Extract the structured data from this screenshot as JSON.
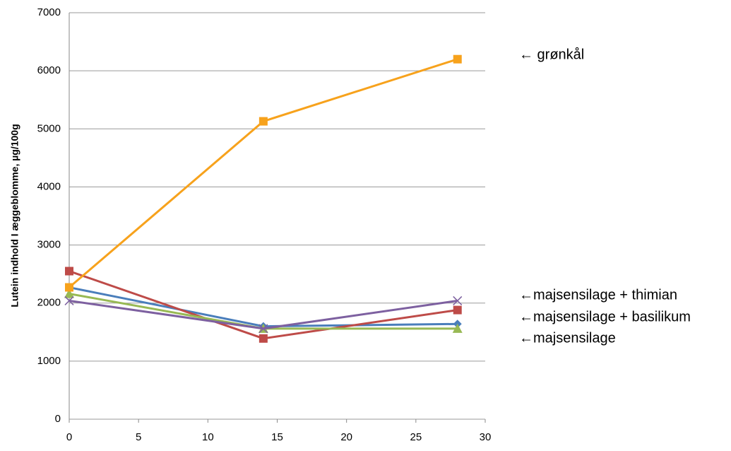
{
  "chart_data": {
    "type": "line",
    "y_label": "Lutein indhold I æggeblomme, µg/100g",
    "x": [
      0,
      14,
      28
    ],
    "series": [
      {
        "color": "#4a7ebb",
        "marker": "diamond",
        "values": [
          2270,
          1600,
          1640
        ]
      },
      {
        "color": "#be4b48",
        "marker": "square",
        "values": [
          2550,
          1390,
          1880
        ]
      },
      {
        "color": "#98b954",
        "marker": "triangle",
        "values": [
          2160,
          1560,
          1560
        ]
      },
      {
        "color": "#7d60a0",
        "marker": "x",
        "values": [
          2040,
          1560,
          2040
        ]
      },
      {
        "color": "#f7a21c",
        "marker": "square",
        "values": [
          2270,
          5130,
          6200
        ]
      }
    ],
    "xlim": [
      0,
      30
    ],
    "xticks": [
      0,
      5,
      10,
      15,
      20,
      25,
      30
    ],
    "ylim": [
      0,
      7000
    ],
    "yticks": [
      0,
      1000,
      2000,
      3000,
      4000,
      5000,
      6000,
      7000
    ],
    "grid": true,
    "annotations": [
      "← grønkål",
      "←majsensilage + thimian",
      "←majsensilage + basilikum",
      "←majsensilage"
    ]
  }
}
